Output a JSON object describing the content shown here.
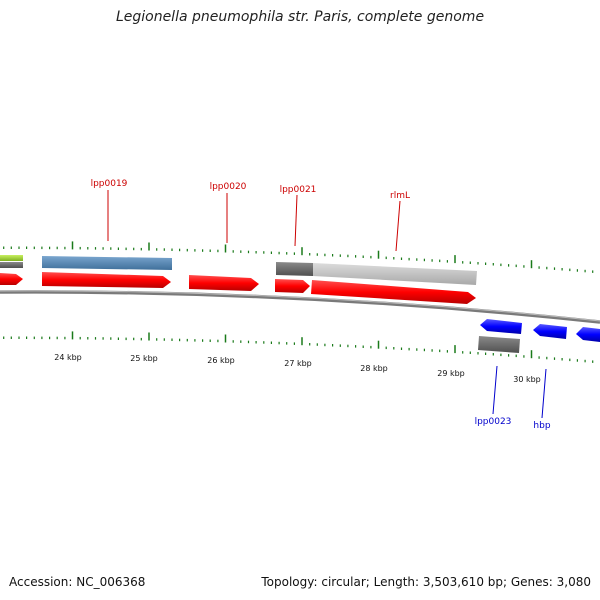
{
  "title": "Legionella pneumophila str. Paris, complete genome",
  "footer": {
    "accession": "Accession: NC_006368",
    "summary": "Topology: circular; Length: 3,503,610 bp; Genes: 3,080"
  },
  "colors": {
    "forward_gene": "#ff0000",
    "reverse_gene": "#0000ff",
    "feature_blue": "#4682b4",
    "feature_green": "#9acd32",
    "feature_gray": "#6e6e6e",
    "feature_lightgray": "#c0c0c0",
    "tick": "#1a7a1a",
    "backbone": "#7a7a7a",
    "forward_label": "#cc0000",
    "reverse_label": "#0000cc"
  },
  "scale_labels": [
    "24 kbp",
    "25 kbp",
    "26 kbp",
    "27 kbp",
    "28 kbp",
    "29 kbp",
    "30 kbp"
  ],
  "gene_labels": {
    "forward": [
      "lpp0019",
      "lpp0020",
      "lpp0021",
      "rlmL"
    ],
    "reverse": [
      "lpp0023",
      "hbp"
    ]
  }
}
